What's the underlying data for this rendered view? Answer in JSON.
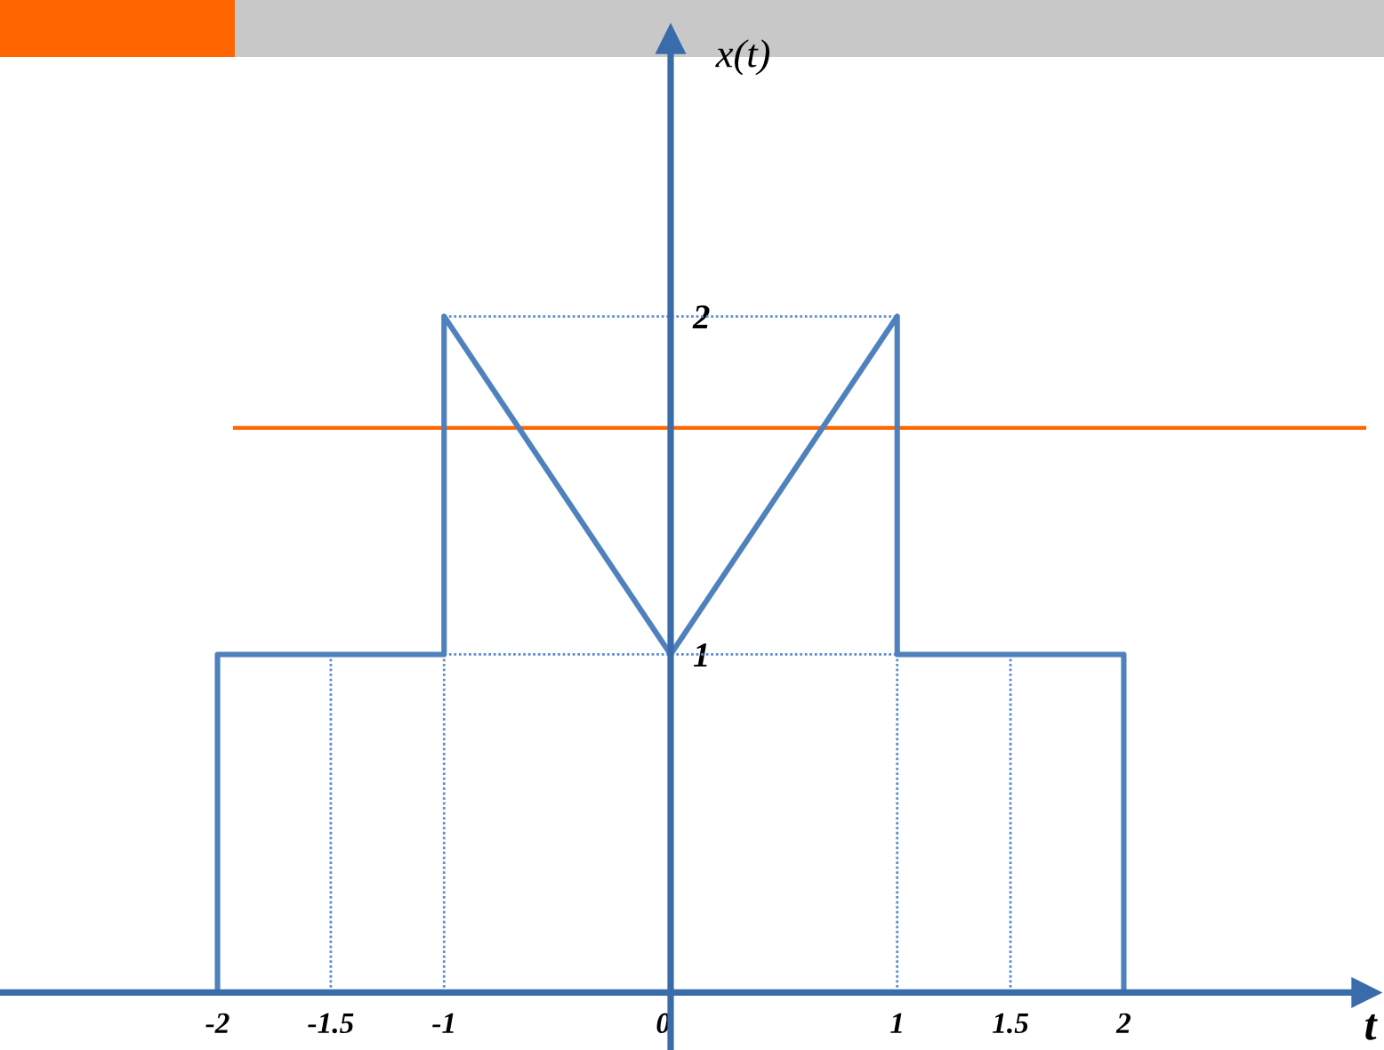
{
  "chart_data": {
    "type": "line",
    "xlabel": "t",
    "ylabel": "x(t)",
    "xlim": [
      -2.96,
      3.07
    ],
    "ylim": [
      -0.17,
      2.82
    ],
    "xticks": [
      -2,
      -1.5,
      -1,
      0,
      1,
      1.5,
      2
    ],
    "yticks": [
      1,
      2
    ],
    "series": [
      {
        "color": "#4f81bd",
        "x": [
          -2,
          -2,
          -1,
          -1,
          0,
          1,
          1,
          2,
          2
        ],
        "values": [
          0,
          1,
          1,
          2,
          1,
          2,
          1,
          1,
          0
        ]
      },
      {
        "color": "#5b8ccf",
        "line_style": "dotted",
        "x": [
          -1,
          1
        ],
        "values": [
          2,
          2
        ]
      },
      {
        "color": "#5b8ccf",
        "line_style": "dotted",
        "x": [
          -1,
          1
        ],
        "values": [
          1,
          1
        ]
      },
      {
        "color": "#5b8ccf",
        "line_style": "dotted",
        "x": [
          -1.5,
          -1.5
        ],
        "values": [
          0,
          1
        ]
      },
      {
        "color": "#5b8ccf",
        "line_style": "dotted",
        "x": [
          -1,
          -1
        ],
        "values": [
          0,
          1
        ]
      },
      {
        "color": "#5b8ccf",
        "line_style": "dotted",
        "x": [
          1,
          1
        ],
        "values": [
          0,
          1
        ]
      },
      {
        "color": "#5b8ccf",
        "line_style": "dotted",
        "x": [
          1.5,
          1.5
        ],
        "values": [
          0,
          1
        ]
      }
    ],
    "ref_lines": [
      {
        "axis": "y",
        "value": 1.67,
        "color": "#ff6600"
      }
    ]
  }
}
